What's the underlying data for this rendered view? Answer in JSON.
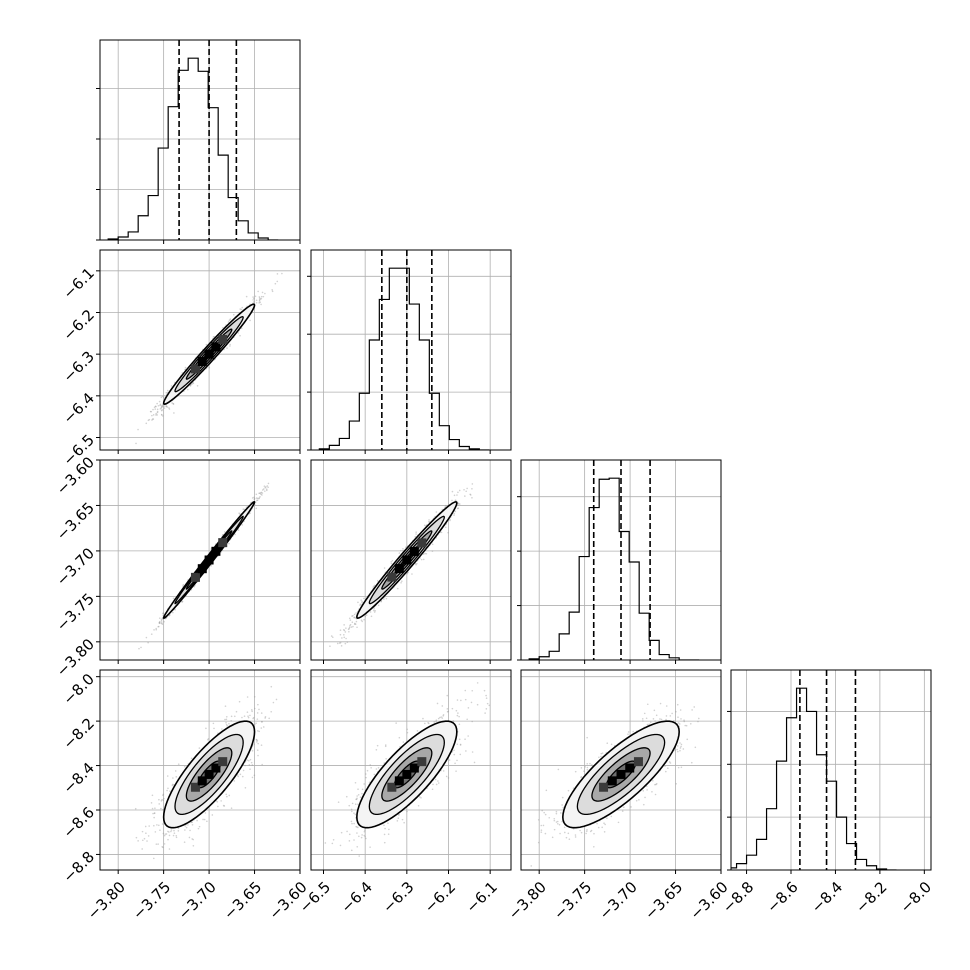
{
  "chart_data": {
    "type": "corner",
    "grid": true,
    "colors": {
      "histogram": "#000000",
      "contour": "#000000",
      "samples": "#9a9a9a",
      "grid": "#b0b0b0",
      "density_dark": "#000000",
      "density_light": "#eeeeee"
    },
    "parameters": [
      {
        "range": [
          -3.82,
          -3.6
        ],
        "ticks": [
          -3.8,
          -3.75,
          -3.7,
          -3.65,
          -3.6
        ],
        "tick_labels": [
          "−3.80",
          "−3.75",
          "−3.70",
          "−3.65",
          "−3.60"
        ]
      },
      {
        "range": [
          -6.53,
          -6.05
        ],
        "ticks": [
          -6.5,
          -6.4,
          -6.3,
          -6.2,
          -6.1
        ],
        "tick_labels": [
          "−6.5",
          "−6.4",
          "−6.3",
          "−6.2",
          "−6.1"
        ]
      },
      {
        "range": [
          -3.82,
          -3.6
        ],
        "ticks": [
          -3.8,
          -3.75,
          -3.7,
          -3.65,
          -3.6
        ],
        "tick_labels": [
          "−3.80",
          "−3.75",
          "−3.70",
          "−3.65",
          "−3.60"
        ]
      },
      {
        "range": [
          -8.87,
          -7.97
        ],
        "ticks": [
          -8.8,
          -8.6,
          -8.4,
          -8.2,
          -8.0
        ],
        "tick_labels": [
          "−8.8",
          "−8.6",
          "−8.4",
          "−8.2",
          "−8.0"
        ]
      }
    ],
    "histograms": [
      {
        "bin_edges_start": -3.811,
        "bin_width": 0.011,
        "counts": [
          1,
          3,
          8,
          24,
          44,
          91,
          132,
          168,
          180,
          167,
          131,
          84,
          42,
          19,
          7,
          2,
          0
        ],
        "quantiles": [
          -3.733,
          -3.7,
          -3.67
        ]
      },
      {
        "bin_edges_start": -6.51,
        "bin_width": 0.024,
        "counts": [
          1,
          4,
          10,
          25,
          49,
          95,
          130,
          157,
          157,
          126,
          95,
          49,
          21,
          9,
          3,
          1,
          0
        ],
        "quantiles": [
          -6.36,
          -6.3,
          -6.24
        ]
      },
      {
        "bin_edges_start": -3.811,
        "bin_width": 0.011,
        "counts": [
          1,
          3,
          8,
          24,
          44,
          95,
          140,
          166,
          167,
          118,
          90,
          43,
          18,
          5,
          2,
          0,
          0
        ],
        "quantiles": [
          -3.74,
          -3.71,
          -3.678
        ]
      },
      {
        "bin_edges_start": -8.89,
        "bin_width": 0.045,
        "counts": [
          2,
          6,
          14,
          29,
          58,
          103,
          144,
          172,
          150,
          109,
          84,
          50,
          25,
          10,
          4,
          1,
          0
        ],
        "quantiles": [
          -8.56,
          -8.44,
          -8.31
        ]
      }
    ],
    "pairs": [
      {
        "x_param": 0,
        "y_param": 1,
        "center": [
          -3.7,
          -6.3
        ],
        "sigma": [
          0.025,
          0.06
        ],
        "rho": 0.98,
        "sample_extent_x": [
          -3.81,
          -3.61
        ],
        "sample_extent_y": [
          -6.52,
          -6.07
        ]
      },
      {
        "x_param": 0,
        "y_param": 2,
        "center": [
          -3.7,
          -3.71
        ],
        "sigma": [
          0.025,
          0.032
        ],
        "rho": 0.995,
        "sample_extent_x": [
          -3.81,
          -3.61
        ],
        "sample_extent_y": [
          -3.81,
          -3.62
        ]
      },
      {
        "x_param": 1,
        "y_param": 2,
        "center": [
          -6.3,
          -3.71
        ],
        "sigma": [
          0.06,
          0.032
        ],
        "rho": 0.98,
        "sample_extent_x": [
          -6.52,
          -6.08
        ],
        "sample_extent_y": [
          -3.81,
          -3.62
        ]
      },
      {
        "x_param": 0,
        "y_param": 3,
        "center": [
          -3.7,
          -8.44
        ],
        "sigma": [
          0.025,
          0.12
        ],
        "rho": 0.8,
        "sample_extent_x": [
          -3.81,
          -3.61
        ],
        "sample_extent_y": [
          -8.87,
          -8.0
        ]
      },
      {
        "x_param": 1,
        "y_param": 3,
        "center": [
          -6.3,
          -8.44
        ],
        "sigma": [
          0.06,
          0.12
        ],
        "rho": 0.8,
        "sample_extent_x": [
          -6.52,
          -6.08
        ],
        "sample_extent_y": [
          -8.87,
          -8.0
        ]
      },
      {
        "x_param": 2,
        "y_param": 3,
        "center": [
          -3.71,
          -8.44
        ],
        "sigma": [
          0.032,
          0.12
        ],
        "rho": 0.8,
        "sample_extent_x": [
          -3.81,
          -3.62
        ],
        "sample_extent_y": [
          -8.87,
          -8.0
        ]
      }
    ],
    "contour_levels_sigma": [
      0.5,
      1.0,
      1.5,
      2.0
    ]
  }
}
